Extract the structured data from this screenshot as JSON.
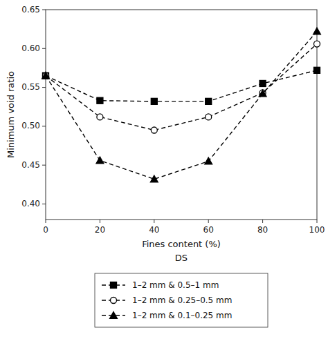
{
  "chart_data": {
    "type": "line",
    "x_label": "Fines content (%)",
    "y_label": "Minimum void ratio",
    "annotations": [
      "DS"
    ],
    "x": [
      0,
      20,
      40,
      60,
      80,
      100
    ],
    "series": [
      {
        "name": "1–2 mm & 0.5–1 mm",
        "color": "black",
        "marker": "square",
        "line_style": "dashed",
        "values": [
          0.565,
          0.533,
          0.532,
          0.532,
          0.555,
          0.572
        ]
      },
      {
        "name": "1–2 mm & 0.25–0.5 mm",
        "color": "black",
        "marker": "open-circle",
        "line_style": "dashed",
        "values": [
          0.565,
          0.512,
          0.495,
          0.512,
          0.543,
          0.606
        ]
      },
      {
        "name": "1–2 mm & 0.1–0.25 mm",
        "color": "black",
        "marker": "triangle",
        "line_style": "dashed",
        "values": [
          0.565,
          0.456,
          0.432,
          0.455,
          0.542,
          0.622
        ]
      }
    ],
    "xlim": [
      0,
      100
    ],
    "xticks": [
      0,
      20,
      40,
      60,
      80,
      100
    ],
    "ylim": [
      0.38,
      0.65
    ],
    "yticks": [
      {
        "value": 0.4,
        "label": "0.40"
      },
      0.45,
      {
        "value": 0.5,
        "label": "0.50"
      },
      0.55,
      {
        "value": 0.6,
        "label": "0.60"
      },
      0.65
    ],
    "grid": false,
    "legend": "below"
  }
}
